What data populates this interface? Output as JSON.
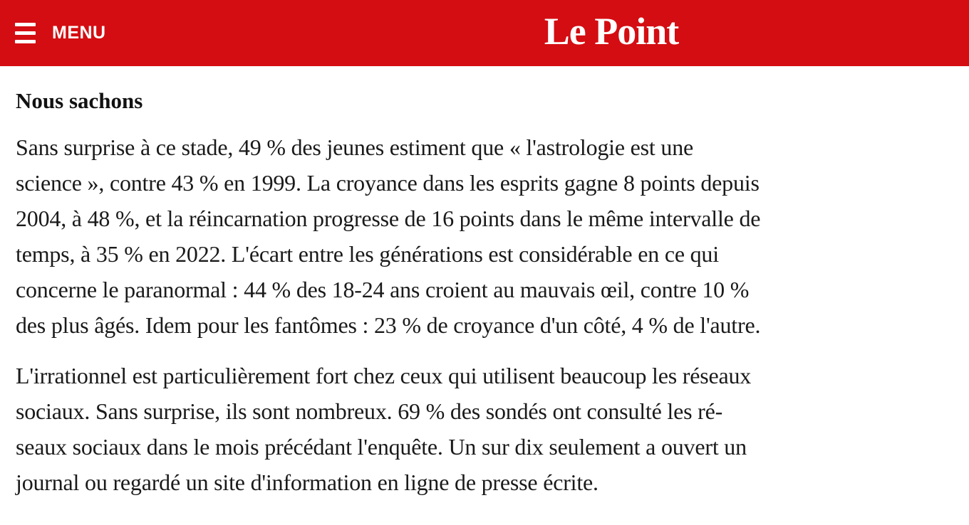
{
  "header": {
    "background_color": "#d40d12",
    "menu_button": {
      "icon": "hamburger-icon",
      "label": "MENU"
    },
    "logo_text": "Le Point"
  },
  "article": {
    "heading": "Nous sachons",
    "paragraphs": [
      {
        "text": "Sans surprise à ce stade, 49 % des jeunes estiment que « l'astrologie est une\nscience », contre 43 % en 1999. La croyance dans les esprits gagne 8 points depuis\n2004, à 48 %, et la réincarnation progresse de 16 points dans le même intervalle de\ntemps, à 35 % en 2022. L'écart entre les générations est considérable en ce qui\nconcerne le paranormal : 44 % des 18-24 ans croient au mauvais œil, contre 10 %\ndes plus âgés. Idem pour les fantômes : 23 % de croyance d'un côté, 4 % de l'autre."
      },
      {
        "text": "L'irrationnel est particulièrement fort chez ceux qui utilisent beaucoup les réseaux\nsociaux. Sans surprise, ils sont nombreux. 69 % des sondés ont consulté les ré-\nseaux sociaux dans le mois précédant l'enquête. Un sur dix seulement a ouvert un\njournal ou regardé un site d'information en ligne de presse écrite."
      }
    ]
  }
}
